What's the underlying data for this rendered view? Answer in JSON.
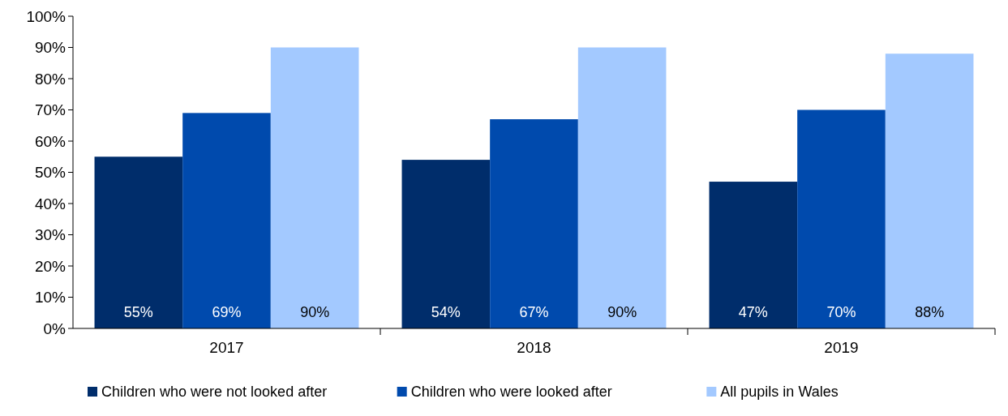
{
  "chart_data": {
    "type": "bar",
    "categories": [
      "2017",
      "2018",
      "2019"
    ],
    "series": [
      {
        "name": "Children who were not looked after",
        "color": "#002d6b",
        "values": [
          55,
          54,
          47
        ],
        "value_labels": [
          "55%",
          "54%",
          "47%"
        ]
      },
      {
        "name": "Children who were looked after",
        "color": "#004aad",
        "values": [
          69,
          67,
          70
        ],
        "value_labels": [
          "69%",
          "67%",
          "70%"
        ]
      },
      {
        "name": "All pupils in Wales",
        "color": "#a3c9ff",
        "values": [
          90,
          90,
          88
        ],
        "value_labels": [
          "90%",
          "90%",
          "88%"
        ]
      }
    ],
    "ylim": [
      0,
      100
    ],
    "yticks": [
      {
        "value": 0,
        "label": "0%"
      },
      {
        "value": 10,
        "label": "10%"
      },
      {
        "value": 20,
        "label": "20%"
      },
      {
        "value": 30,
        "label": "30%"
      },
      {
        "value": 40,
        "label": "40%"
      },
      {
        "value": 50,
        "label": "50%"
      },
      {
        "value": 60,
        "label": "60%"
      },
      {
        "value": 70,
        "label": "70%"
      },
      {
        "value": 80,
        "label": "80%"
      },
      {
        "value": 90,
        "label": "90%"
      },
      {
        "value": 100,
        "label": "100%"
      }
    ],
    "legend": "bottom"
  }
}
